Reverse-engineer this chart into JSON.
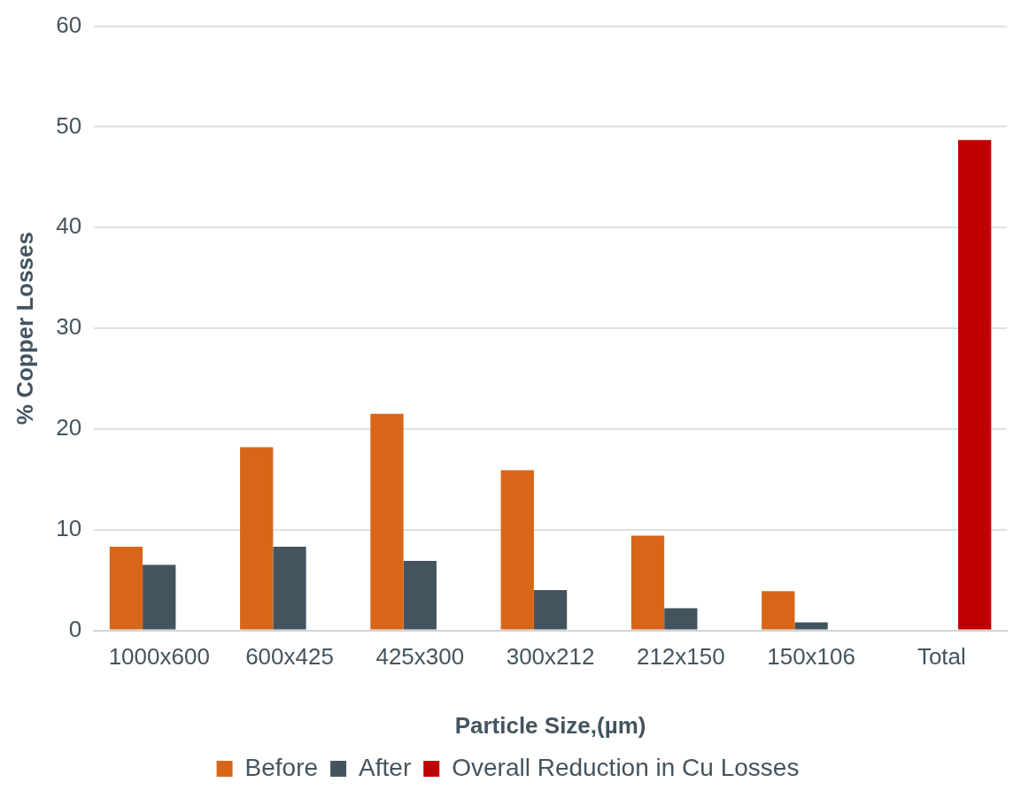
{
  "chart_data": {
    "type": "bar",
    "xlabel": "Particle Size,(µm)",
    "ylabel": "% Copper Losses",
    "categories": [
      "1000x600",
      "600x425",
      "425x300",
      "300x212",
      "212x150",
      "150x106",
      "Total"
    ],
    "series": [
      {
        "name": "Before",
        "color": "#d86619",
        "values": [
          8.3,
          18.2,
          21.5,
          15.9,
          9.4,
          3.9,
          null
        ]
      },
      {
        "name": "After",
        "color": "#44545f",
        "values": [
          6.5,
          8.3,
          6.9,
          4.0,
          2.2,
          0.8,
          null
        ]
      },
      {
        "name": "Overall Reduction in Cu Losses",
        "color": "#c00000",
        "values": [
          null,
          null,
          null,
          null,
          null,
          null,
          48.7
        ]
      }
    ],
    "ylim": [
      0,
      60
    ],
    "yticks": [
      0,
      10,
      20,
      30,
      40,
      50,
      60
    ],
    "grid": "y",
    "legend": "bottom"
  }
}
